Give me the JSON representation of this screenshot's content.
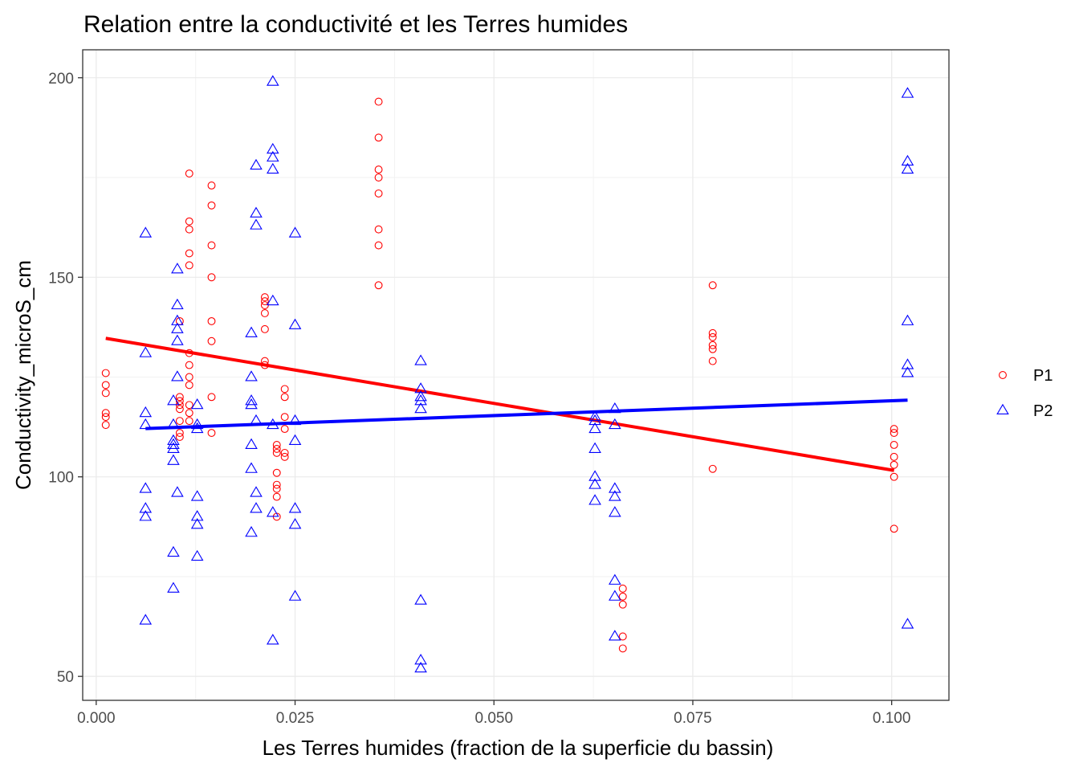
{
  "chart_data": {
    "type": "scatter",
    "title": "Relation entre la conductivité et les Terres humides",
    "xlabel": "Les Terres humides (fraction de la superficie du bassin)",
    "ylabel": "Conductivity_microS_cm",
    "xlim": [
      -0.0017,
      0.1072
    ],
    "ylim": [
      44,
      207
    ],
    "x_ticks": [
      0.0,
      0.025,
      0.05,
      0.075,
      0.1
    ],
    "x_tick_labels": [
      "0.000",
      "0.025",
      "0.050",
      "0.075",
      "0.100"
    ],
    "y_ticks": [
      50,
      100,
      150,
      200
    ],
    "y_tick_labels": [
      "50",
      "100",
      "150",
      "200"
    ],
    "grid": true,
    "legend_position": "right",
    "series": [
      {
        "name": "P1",
        "marker": "circle",
        "color": "#ff0000",
        "points": [
          [
            0.0012,
            126
          ],
          [
            0.0012,
            123
          ],
          [
            0.0012,
            121
          ],
          [
            0.0012,
            116
          ],
          [
            0.0012,
            115
          ],
          [
            0.0012,
            113
          ],
          [
            0.0105,
            139
          ],
          [
            0.0105,
            120
          ],
          [
            0.0105,
            119
          ],
          [
            0.0105,
            118
          ],
          [
            0.0105,
            117
          ],
          [
            0.0105,
            114
          ],
          [
            0.0105,
            111
          ],
          [
            0.0105,
            110
          ],
          [
            0.0117,
            176
          ],
          [
            0.0117,
            164
          ],
          [
            0.0117,
            162
          ],
          [
            0.0117,
            156
          ],
          [
            0.0117,
            153
          ],
          [
            0.0117,
            131
          ],
          [
            0.0117,
            128
          ],
          [
            0.0117,
            125
          ],
          [
            0.0117,
            123
          ],
          [
            0.0117,
            118
          ],
          [
            0.0117,
            116
          ],
          [
            0.0117,
            114
          ],
          [
            0.0145,
            173
          ],
          [
            0.0145,
            168
          ],
          [
            0.0145,
            158
          ],
          [
            0.0145,
            150
          ],
          [
            0.0145,
            139
          ],
          [
            0.0145,
            134
          ],
          [
            0.0145,
            120
          ],
          [
            0.0145,
            111
          ],
          [
            0.0212,
            145
          ],
          [
            0.0212,
            144
          ],
          [
            0.0212,
            143
          ],
          [
            0.0212,
            141
          ],
          [
            0.0212,
            137
          ],
          [
            0.0212,
            129
          ],
          [
            0.0212,
            128
          ],
          [
            0.0227,
            108
          ],
          [
            0.0227,
            107
          ],
          [
            0.0227,
            106
          ],
          [
            0.0227,
            101
          ],
          [
            0.0227,
            98
          ],
          [
            0.0227,
            97
          ],
          [
            0.0227,
            95
          ],
          [
            0.0227,
            90
          ],
          [
            0.0237,
            122
          ],
          [
            0.0237,
            120
          ],
          [
            0.0237,
            115
          ],
          [
            0.0237,
            112
          ],
          [
            0.0237,
            106
          ],
          [
            0.0237,
            105
          ],
          [
            0.0355,
            194
          ],
          [
            0.0355,
            185
          ],
          [
            0.0355,
            177
          ],
          [
            0.0355,
            175
          ],
          [
            0.0355,
            171
          ],
          [
            0.0355,
            162
          ],
          [
            0.0355,
            158
          ],
          [
            0.0355,
            148
          ],
          [
            0.0662,
            72
          ],
          [
            0.0662,
            70
          ],
          [
            0.0662,
            68
          ],
          [
            0.0662,
            60
          ],
          [
            0.0662,
            57
          ],
          [
            0.0775,
            148
          ],
          [
            0.0775,
            136
          ],
          [
            0.0775,
            135
          ],
          [
            0.0775,
            133
          ],
          [
            0.0775,
            132
          ],
          [
            0.0775,
            129
          ],
          [
            0.0775,
            102
          ],
          [
            0.1003,
            112
          ],
          [
            0.1003,
            111
          ],
          [
            0.1003,
            108
          ],
          [
            0.1003,
            105
          ],
          [
            0.1003,
            103
          ],
          [
            0.1003,
            100
          ],
          [
            0.1003,
            87
          ]
        ],
        "fit": [
          [
            0.0012,
            134.7
          ],
          [
            0.1003,
            101.6
          ]
        ]
      },
      {
        "name": "P2",
        "marker": "triangle",
        "color": "#0000ff",
        "points": [
          [
            0.0062,
            161
          ],
          [
            0.0062,
            131
          ],
          [
            0.0062,
            116
          ],
          [
            0.0062,
            113
          ],
          [
            0.0062,
            97
          ],
          [
            0.0062,
            92
          ],
          [
            0.0062,
            90
          ],
          [
            0.0062,
            64
          ],
          [
            0.0097,
            119
          ],
          [
            0.0097,
            113
          ],
          [
            0.0097,
            109
          ],
          [
            0.0097,
            108
          ],
          [
            0.0097,
            107
          ],
          [
            0.0097,
            104
          ],
          [
            0.0097,
            81
          ],
          [
            0.0097,
            72
          ],
          [
            0.0102,
            152
          ],
          [
            0.0102,
            143
          ],
          [
            0.0102,
            139
          ],
          [
            0.0102,
            137
          ],
          [
            0.0102,
            134
          ],
          [
            0.0102,
            125
          ],
          [
            0.0102,
            96
          ],
          [
            0.0127,
            118
          ],
          [
            0.0127,
            113
          ],
          [
            0.0127,
            112
          ],
          [
            0.0127,
            95
          ],
          [
            0.0127,
            90
          ],
          [
            0.0127,
            88
          ],
          [
            0.0127,
            80
          ],
          [
            0.0195,
            136
          ],
          [
            0.0195,
            125
          ],
          [
            0.0195,
            119
          ],
          [
            0.0195,
            118
          ],
          [
            0.0195,
            108
          ],
          [
            0.0195,
            102
          ],
          [
            0.0195,
            86
          ],
          [
            0.0201,
            178
          ],
          [
            0.0201,
            166
          ],
          [
            0.0201,
            163
          ],
          [
            0.0201,
            114
          ],
          [
            0.0201,
            96
          ],
          [
            0.0201,
            92
          ],
          [
            0.0222,
            199
          ],
          [
            0.0222,
            182
          ],
          [
            0.0222,
            180
          ],
          [
            0.0222,
            177
          ],
          [
            0.0222,
            144
          ],
          [
            0.0222,
            113
          ],
          [
            0.0222,
            91
          ],
          [
            0.0222,
            59
          ],
          [
            0.025,
            161
          ],
          [
            0.025,
            138
          ],
          [
            0.025,
            114
          ],
          [
            0.025,
            109
          ],
          [
            0.025,
            92
          ],
          [
            0.025,
            88
          ],
          [
            0.025,
            70
          ],
          [
            0.0408,
            129
          ],
          [
            0.0408,
            122
          ],
          [
            0.0408,
            120
          ],
          [
            0.0408,
            119
          ],
          [
            0.0408,
            117
          ],
          [
            0.0408,
            69
          ],
          [
            0.0408,
            54
          ],
          [
            0.0408,
            52
          ],
          [
            0.0627,
            115
          ],
          [
            0.0627,
            114
          ],
          [
            0.0627,
            112
          ],
          [
            0.0627,
            107
          ],
          [
            0.0627,
            100
          ],
          [
            0.0627,
            98
          ],
          [
            0.0627,
            94
          ],
          [
            0.0652,
            117
          ],
          [
            0.0652,
            113
          ],
          [
            0.0652,
            97
          ],
          [
            0.0652,
            95
          ],
          [
            0.0652,
            91
          ],
          [
            0.0652,
            74
          ],
          [
            0.0652,
            70
          ],
          [
            0.0652,
            60
          ],
          [
            0.102,
            196
          ],
          [
            0.102,
            179
          ],
          [
            0.102,
            177
          ],
          [
            0.102,
            139
          ],
          [
            0.102,
            128
          ],
          [
            0.102,
            126
          ],
          [
            0.102,
            63
          ]
        ],
        "fit": [
          [
            0.0062,
            112.1
          ],
          [
            0.102,
            119.2
          ]
        ]
      }
    ]
  }
}
